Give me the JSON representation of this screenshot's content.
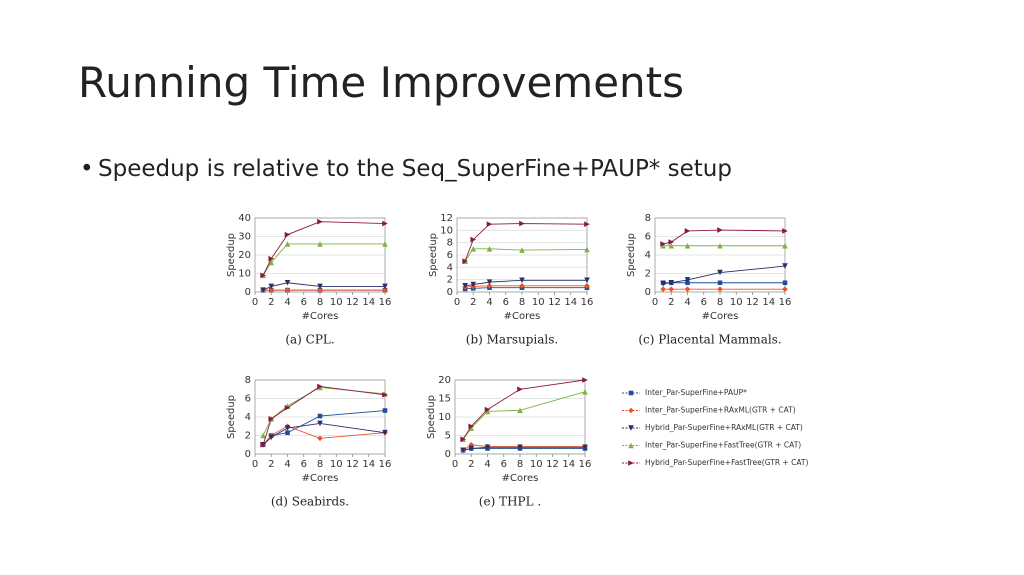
{
  "slide": {
    "title": "Running Time Improvements",
    "bullet": "Speedup is relative to the Seq_SuperFine+PAUP*  setup"
  },
  "chart_data": [
    {
      "type": "line",
      "caption": "(a) CPL.",
      "x_label": "#Cores",
      "y_label": "Speedup",
      "x": [
        1,
        2,
        4,
        8,
        16
      ],
      "xlim": [
        0,
        16
      ],
      "xticks": [
        0,
        2,
        4,
        6,
        8,
        10,
        12,
        14,
        16
      ],
      "ylim": [
        0,
        40
      ],
      "yticks": [
        0,
        10,
        20,
        30,
        40
      ],
      "grid": true,
      "series": [
        {
          "color": "#1f4e9a",
          "values": [
            1,
            1,
            1,
            1,
            1
          ]
        },
        {
          "color": "#e8552a",
          "values": [
            1,
            1,
            1,
            1,
            1
          ]
        },
        {
          "color": "#27306b",
          "values": [
            1,
            3,
            5,
            3,
            3
          ]
        },
        {
          "color": "#7cb342",
          "values": [
            9,
            16,
            26,
            26,
            26
          ]
        },
        {
          "color": "#8b1a3a",
          "values": [
            9,
            18,
            31,
            38,
            37
          ]
        }
      ]
    },
    {
      "type": "line",
      "caption": "(b) Marsupials.",
      "x_label": "#Cores",
      "y_label": "Speedup",
      "x": [
        1,
        2,
        4,
        8,
        16
      ],
      "xlim": [
        0,
        16
      ],
      "xticks": [
        0,
        2,
        4,
        6,
        8,
        10,
        12,
        14,
        16
      ],
      "ylim": [
        0,
        12
      ],
      "yticks": [
        0,
        2,
        4,
        6,
        8,
        10,
        12
      ],
      "grid": true,
      "series": [
        {
          "color": "#1f4e9a",
          "values": [
            0.5,
            0.6,
            0.7,
            0.7,
            0.7
          ]
        },
        {
          "color": "#e8552a",
          "values": [
            0.8,
            0.9,
            1,
            1,
            1
          ]
        },
        {
          "color": "#27306b",
          "values": [
            1,
            1.2,
            1.6,
            1.9,
            1.9
          ]
        },
        {
          "color": "#7cb342",
          "values": [
            5,
            7,
            7,
            6.8,
            6.9
          ]
        },
        {
          "color": "#8b1a3a",
          "values": [
            5,
            8.5,
            11,
            11.1,
            11
          ]
        }
      ]
    },
    {
      "type": "line",
      "caption": "(c) Placental Mammals.",
      "x_label": "#Cores",
      "y_label": "Speedup",
      "x": [
        1,
        2,
        4,
        8,
        16
      ],
      "xlim": [
        0,
        16
      ],
      "xticks": [
        0,
        2,
        4,
        6,
        8,
        10,
        12,
        14,
        16
      ],
      "ylim": [
        0,
        8
      ],
      "yticks": [
        0,
        2,
        4,
        6,
        8
      ],
      "grid": true,
      "series": [
        {
          "color": "#1f4e9a",
          "values": [
            1,
            1,
            1,
            1,
            1
          ]
        },
        {
          "color": "#e8552a",
          "values": [
            0.3,
            0.3,
            0.3,
            0.3,
            0.3
          ]
        },
        {
          "color": "#27306b",
          "values": [
            0.9,
            1,
            1.3,
            2.1,
            2.8
          ]
        },
        {
          "color": "#7cb342",
          "values": [
            5,
            5,
            5,
            5,
            5
          ]
        },
        {
          "color": "#8b1a3a",
          "values": [
            5.2,
            5.4,
            6.6,
            6.7,
            6.6
          ]
        }
      ]
    },
    {
      "type": "line",
      "caption": "(d) Seabirds.",
      "x_label": "#Cores",
      "y_label": "Speedup",
      "x": [
        1,
        2,
        4,
        8,
        16
      ],
      "xlim": [
        0,
        16
      ],
      "xticks": [
        0,
        2,
        4,
        6,
        8,
        10,
        12,
        14,
        16
      ],
      "ylim": [
        0,
        8
      ],
      "yticks": [
        0,
        2,
        4,
        6,
        8
      ],
      "grid": true,
      "series": [
        {
          "color": "#1f4e9a",
          "values": [
            1,
            2,
            2.3,
            4.1,
            4.7
          ]
        },
        {
          "color": "#e8552a",
          "values": [
            1,
            2,
            3,
            1.7,
            2.3
          ]
        },
        {
          "color": "#27306b",
          "values": [
            1,
            1.8,
            2.8,
            3.3,
            2.3
          ]
        },
        {
          "color": "#7cb342",
          "values": [
            2,
            3.8,
            5.2,
            7.2,
            6.5
          ]
        },
        {
          "color": "#8b1a3a",
          "values": [
            1,
            3.8,
            5,
            7.3,
            6.4
          ]
        }
      ]
    },
    {
      "type": "line",
      "caption": "(e) THPL .",
      "x_label": "#Cores",
      "y_label": "Speedup",
      "x": [
        1,
        2,
        4,
        8,
        16
      ],
      "xlim": [
        0,
        16
      ],
      "xticks": [
        0,
        2,
        4,
        6,
        8,
        10,
        12,
        14,
        16
      ],
      "ylim": [
        0,
        20
      ],
      "yticks": [
        0,
        5,
        10,
        15,
        20
      ],
      "grid": true,
      "series": [
        {
          "name": "Inter_Par-SuperFine+PAUP*",
          "color": "#1f4e9a",
          "values": [
            1,
            1.5,
            1.5,
            1.5,
            1.5
          ]
        },
        {
          "name": "Inter_Par-SuperFine+RAxML(GTR + CAT)",
          "color": "#e8552a",
          "values": [
            1,
            2.5,
            2,
            2,
            2
          ]
        },
        {
          "name": "Hybrid_Par-SuperFine+RAxML(GTR + CAT)",
          "color": "#27306b",
          "values": [
            1,
            1.5,
            1.8,
            1.8,
            1.8
          ]
        },
        {
          "name": "Inter_Par-SuperFine+FastTree(GTR + CAT)",
          "color": "#7cb342",
          "values": [
            4,
            7,
            11.5,
            11.8,
            16.8
          ]
        },
        {
          "name": "Hybrid_Par-SuperFine+FastTree(GTR + CAT)",
          "color": "#8b1a3a",
          "values": [
            4,
            7.5,
            12,
            17.5,
            20
          ]
        }
      ]
    }
  ]
}
